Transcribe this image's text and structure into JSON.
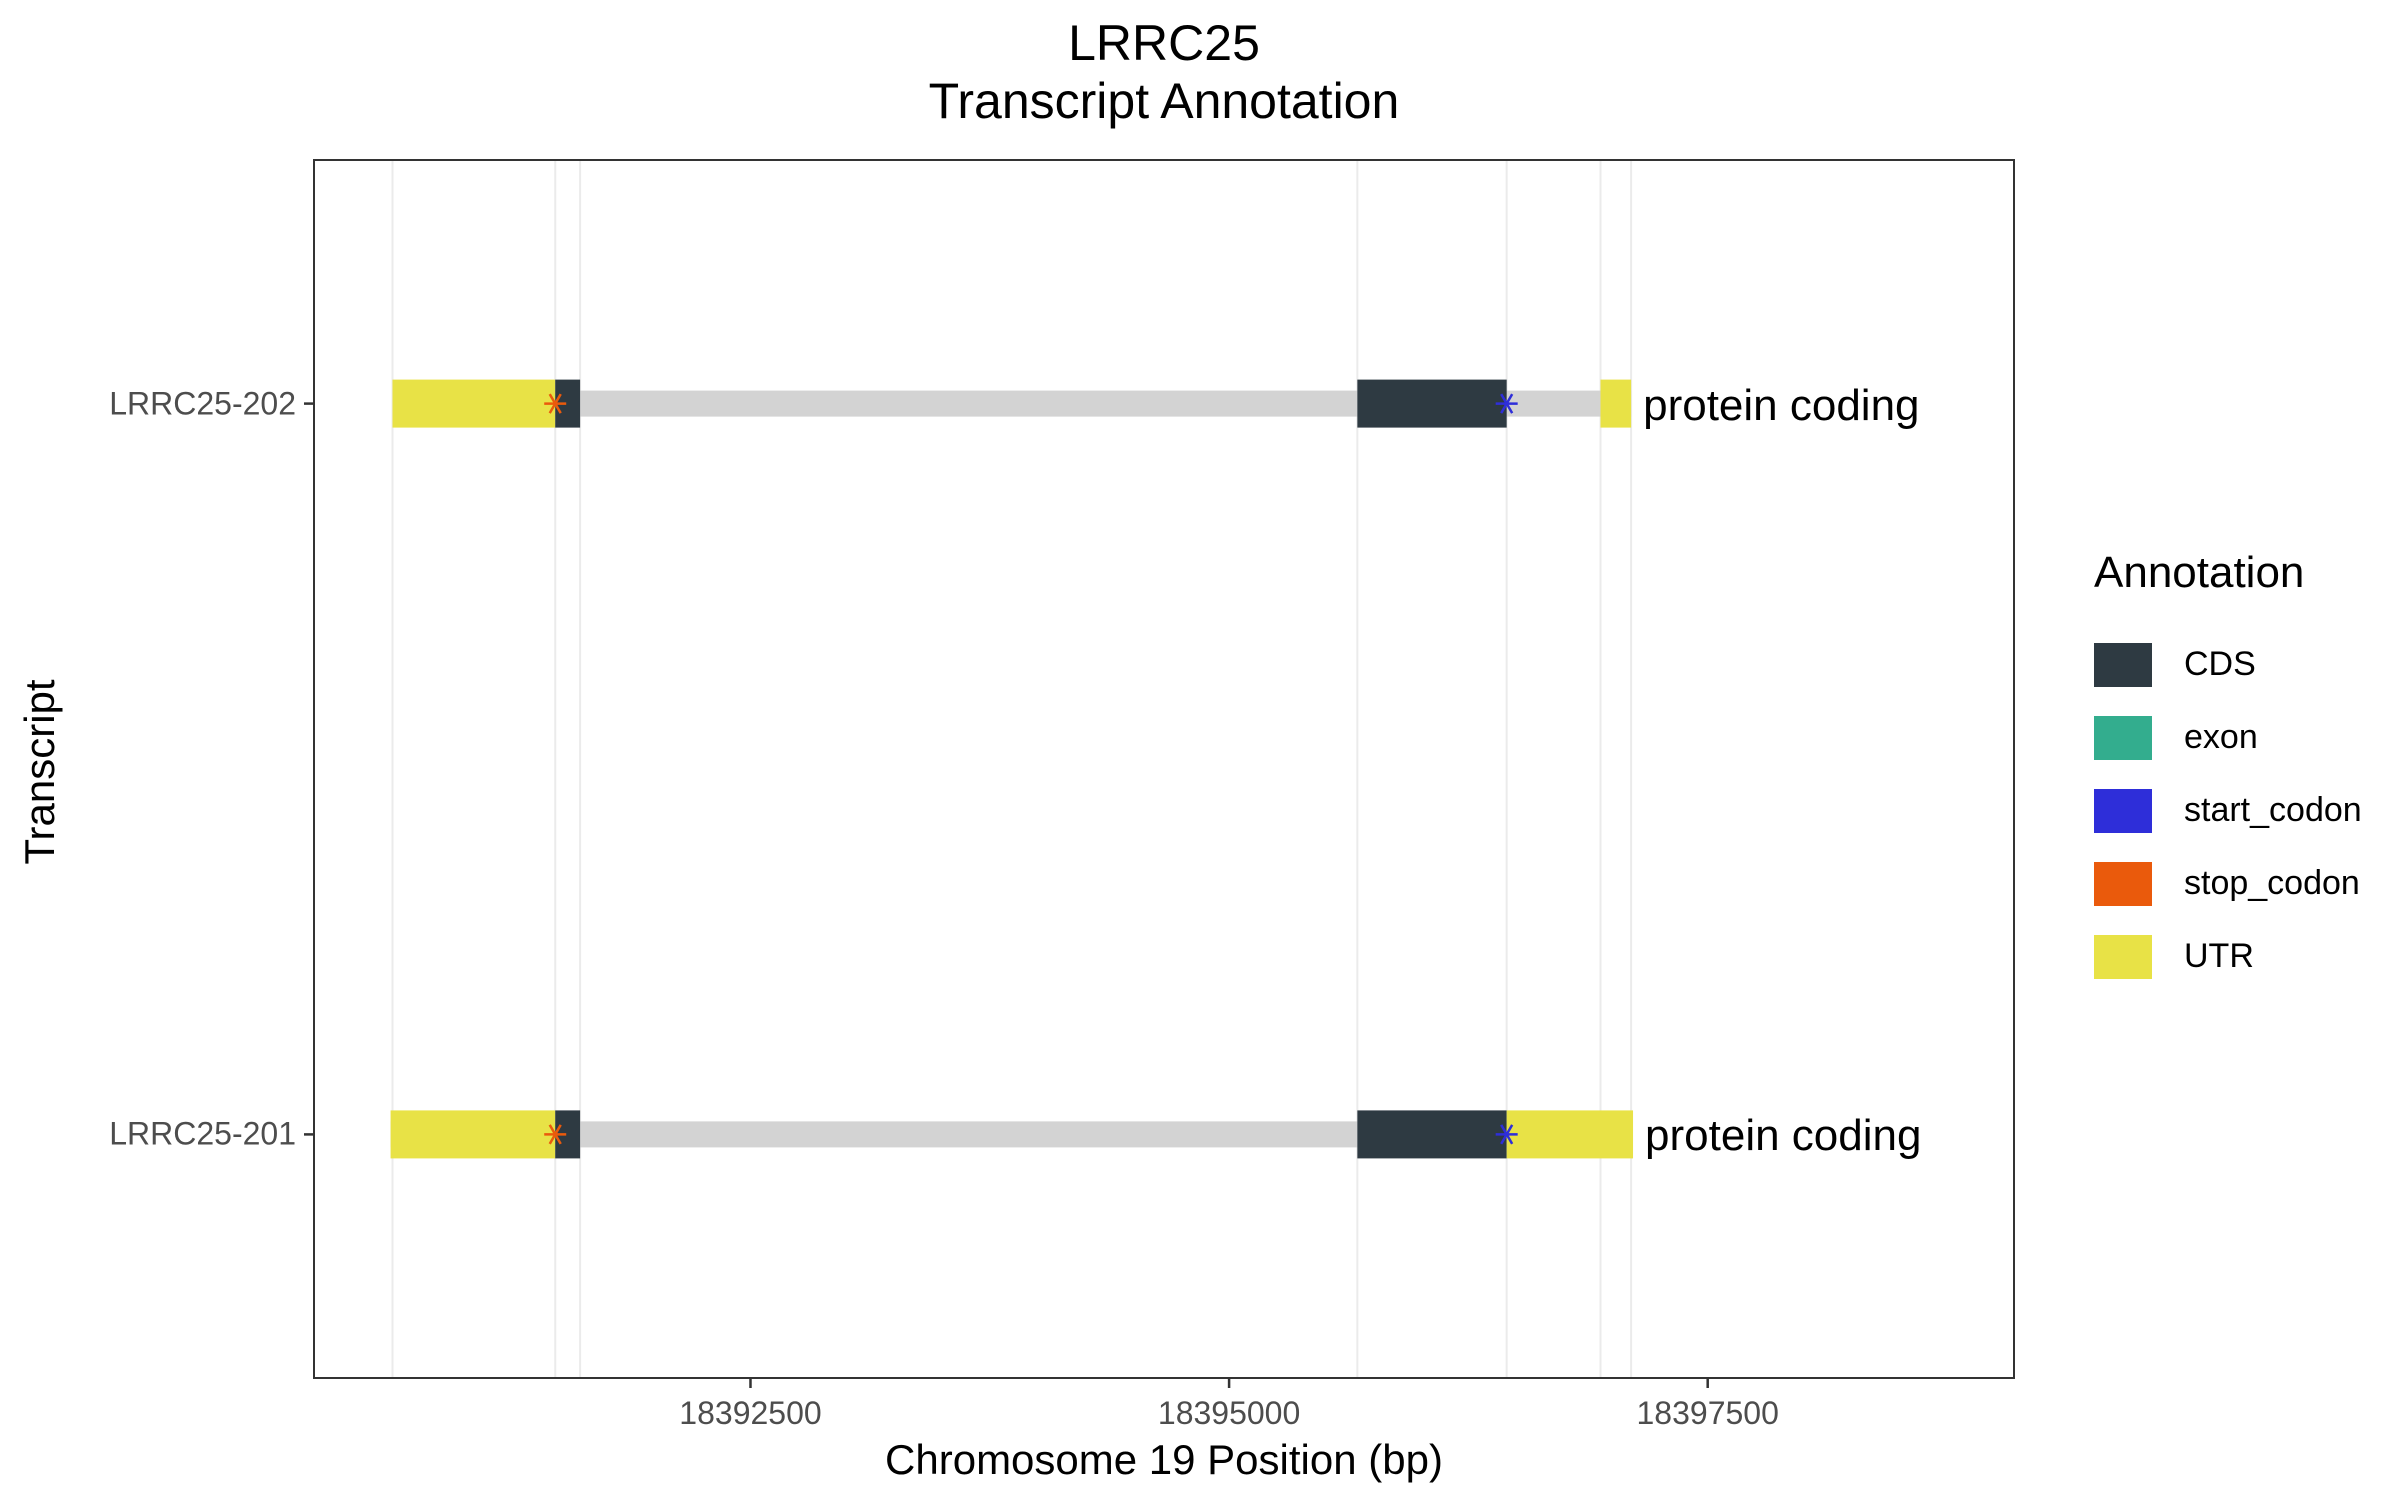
{
  "chart_data": {
    "type": "transcript_annotation",
    "title_line1": "LRRC25",
    "title_line2": "Transcript Annotation",
    "xlabel": "Chromosome 19 Position (bp)",
    "ylabel": "Transcript",
    "xlim": [
      18390220,
      18399100
    ],
    "x_ticks": [
      18392500,
      18395000,
      18397500
    ],
    "x_tick_labels": [
      "18392500",
      "18395000",
      "18397500"
    ],
    "transcripts": [
      "LRRC25-201",
      "LRRC25-202"
    ],
    "gridlines_x": [
      18390630,
      18391480,
      18391610,
      18395670,
      18396450,
      18396940,
      18397100
    ],
    "legend": {
      "title": "Annotation",
      "position": "right",
      "items": [
        {
          "label": "CDS",
          "color": "#2e3a42"
        },
        {
          "label": "exon",
          "color": "#33ad8e"
        },
        {
          "label": "start_codon",
          "color": "#2e2ed9"
        },
        {
          "label": "stop_codon",
          "color": "#ea5a0c"
        },
        {
          "label": "UTR",
          "color": "#e8e246"
        }
      ]
    },
    "intron_color": "#d3d3d3",
    "tracks": [
      {
        "transcript": "LRRC25-202",
        "biotype": "protein coding",
        "start": 18390630,
        "end": 18397100,
        "features": [
          {
            "type": "UTR",
            "start": 18390630,
            "end": 18391480
          },
          {
            "type": "CDS",
            "start": 18391480,
            "end": 18391610
          },
          {
            "type": "CDS",
            "start": 18395670,
            "end": 18396450
          },
          {
            "type": "UTR",
            "start": 18396940,
            "end": 18397100
          }
        ],
        "stop_codon": 18391480,
        "start_codon": 18396450
      },
      {
        "transcript": "LRRC25-201",
        "biotype": "protein coding",
        "start": 18390620,
        "end": 18397110,
        "features": [
          {
            "type": "UTR",
            "start": 18390620,
            "end": 18391480
          },
          {
            "type": "CDS",
            "start": 18391480,
            "end": 18391610
          },
          {
            "type": "CDS",
            "start": 18395670,
            "end": 18396450
          },
          {
            "type": "UTR",
            "start": 18396450,
            "end": 18397110
          }
        ],
        "stop_codon": 18391480,
        "start_codon": 18396450
      }
    ]
  }
}
